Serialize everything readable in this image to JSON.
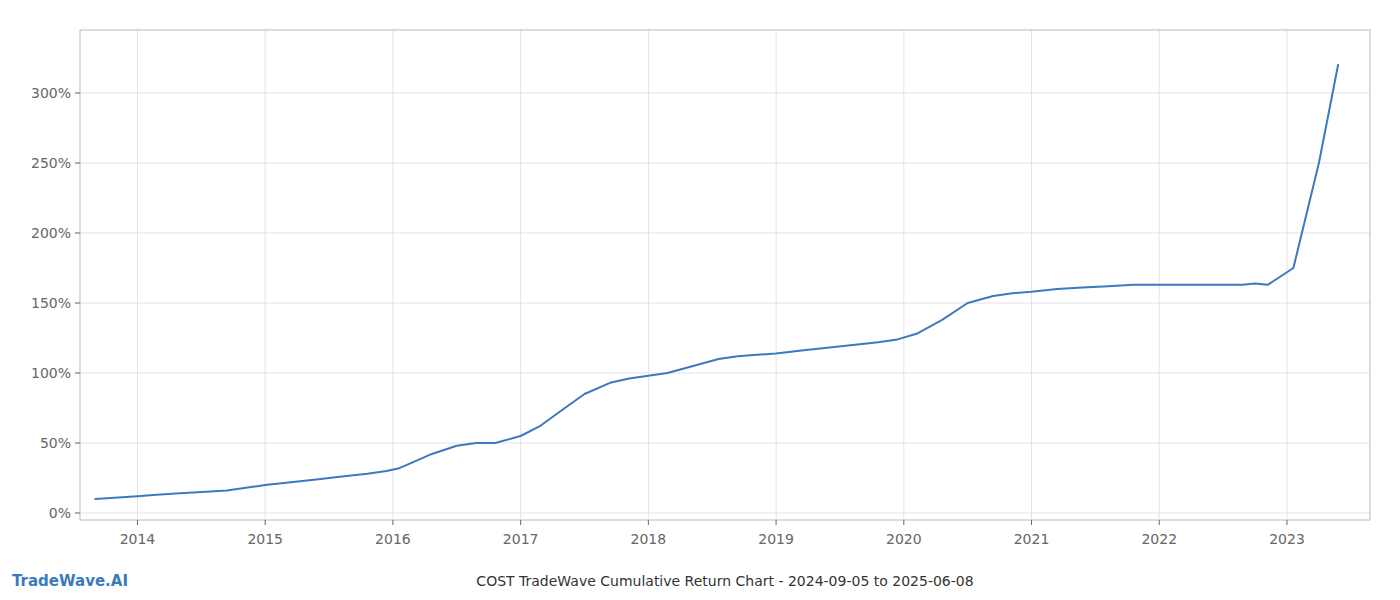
{
  "chart_data": {
    "type": "line",
    "title": "COST TradeWave Cumulative Return Chart - 2024-09-05 to 2025-06-08",
    "annotations": [
      "TradeWave.AI"
    ],
    "color": "#3a7abf",
    "grid": true,
    "x": [
      2013.67,
      2013.85,
      2014.0,
      2014.15,
      2014.3,
      2014.5,
      2014.7,
      2014.85,
      2015.0,
      2015.2,
      2015.4,
      2015.6,
      2015.8,
      2015.95,
      2016.05,
      2016.15,
      2016.3,
      2016.5,
      2016.65,
      2016.8,
      2017.0,
      2017.15,
      2017.3,
      2017.5,
      2017.7,
      2017.85,
      2018.0,
      2018.15,
      2018.35,
      2018.55,
      2018.7,
      2018.85,
      2019.0,
      2019.2,
      2019.4,
      2019.6,
      2019.8,
      2019.95,
      2020.1,
      2020.3,
      2020.5,
      2020.7,
      2020.85,
      2021.0,
      2021.2,
      2021.4,
      2021.6,
      2021.8,
      2022.0,
      2022.2,
      2022.35,
      2022.5,
      2022.65,
      2022.75,
      2022.85,
      2023.05,
      2023.25,
      2023.4
    ],
    "values": [
      10,
      11,
      12,
      13,
      14,
      15,
      16,
      18,
      20,
      22,
      24,
      26,
      28,
      30,
      32,
      36,
      42,
      48,
      50,
      50,
      55,
      62,
      72,
      85,
      93,
      96,
      98,
      100,
      105,
      110,
      112,
      113,
      114,
      116,
      118,
      120,
      122,
      124,
      128,
      138,
      150,
      155,
      157,
      158,
      160,
      161,
      162,
      163,
      163,
      163,
      163,
      163,
      163,
      164,
      163,
      175,
      250,
      320
    ],
    "xlim": [
      2013.55,
      2023.65
    ],
    "xticks": [
      2014,
      2015,
      2016,
      2017,
      2018,
      2019,
      2020,
      2021,
      2022,
      2023
    ],
    "ylim": [
      -5,
      345
    ],
    "yticks": [
      {
        "value": 0,
        "label": "0%"
      },
      {
        "value": 50,
        "label": "50%"
      },
      {
        "value": 100,
        "label": "100%"
      },
      {
        "value": 150,
        "label": "150%"
      },
      {
        "value": 200,
        "label": "200%"
      },
      {
        "value": 250,
        "label": "250%"
      },
      {
        "value": 300,
        "label": "300%"
      }
    ]
  }
}
